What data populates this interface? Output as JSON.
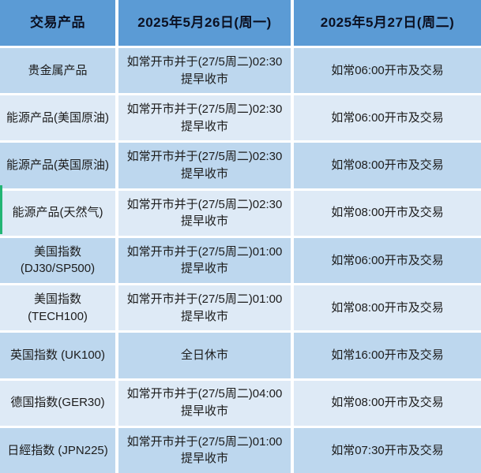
{
  "table": {
    "headers": {
      "product": "交易产品",
      "may26": "2025年5月26日(周一)",
      "may27": "2025年5月27日(周二)"
    },
    "rows": [
      {
        "product": "贵金属产品",
        "may26": "如常开市并于(27/5周二)02:30\n提早收市",
        "may27": "如常06:00开市及交易"
      },
      {
        "product": "能源产品(美国原油)",
        "may26": "如常开市并于(27/5周二)02:30\n提早收市",
        "may27": "如常06:00开市及交易"
      },
      {
        "product": "能源产品(英国原油)",
        "may26": "如常开市并于(27/5周二)02:30\n提早收市",
        "may27": "如常08:00开市及交易"
      },
      {
        "product": "能源产品(天然气)",
        "may26": "如常开市并于(27/5周二)02:30\n提早收市",
        "may27": "如常08:00开市及交易"
      },
      {
        "product": "美国指数\n(DJ30/SP500)",
        "may26": "如常开市并于(27/5周二)01:00\n提早收市",
        "may27": "如常06:00开市及交易"
      },
      {
        "product": "美国指数(TECH100)",
        "may26": "如常开市并于(27/5周二)01:00\n提早收市",
        "may27": "如常08:00开市及交易"
      },
      {
        "product": "英国指数 (UK100)",
        "may26": "全日休市",
        "may27": "如常16:00开市及交易"
      },
      {
        "product": "德国指数(GER30)",
        "may26": "如常开市并于(27/5周二)04:00\n提早收市",
        "may27": "如常08:00开市及交易"
      },
      {
        "product": "日經指数 (JPN225)",
        "may26": "如常开市并于(27/5周二)01:00\n提早收市",
        "may27": "如常07:30开市及交易"
      }
    ]
  },
  "colors": {
    "header_bg": "#5b9bd5",
    "row_shade_a": "#bdd7ee",
    "row_shade_b": "#deeaf6",
    "divider": "#ffffff",
    "header_text": "#0b1021",
    "body_text": "#1c1c1c",
    "green_marker": "#23b574"
  }
}
